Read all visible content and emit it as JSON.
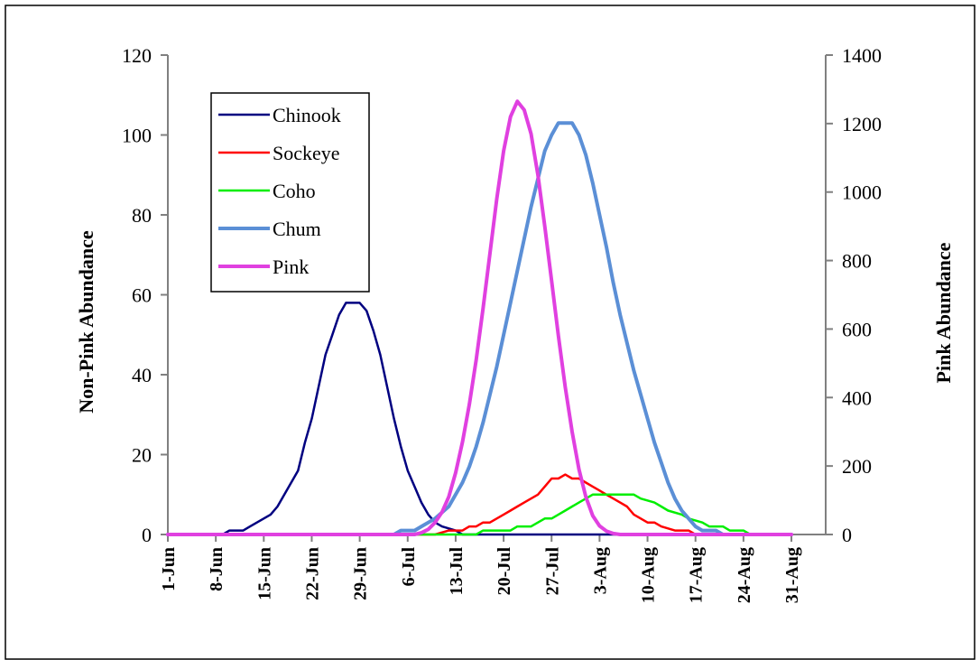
{
  "chart_data": {
    "type": "line",
    "title": "",
    "ylabel": "Non-Pink Abundance",
    "y2label": "Pink Abundance",
    "ylim": [
      0,
      120
    ],
    "y2lim": [
      0,
      1400
    ],
    "yticks": [
      "0",
      "20",
      "40",
      "60",
      "80",
      "100",
      "120"
    ],
    "y2ticks": [
      "0",
      "200",
      "400",
      "600",
      "800",
      "1000",
      "1200",
      "1400"
    ],
    "x_start": "1-Jun",
    "x_day_count": 96,
    "xtick_labels": [
      "1-Jun",
      "8-Jun",
      "15-Jun",
      "22-Jun",
      "29-Jun",
      "6-Jul",
      "13-Jul",
      "20-Jul",
      "27-Jul",
      "3-Aug",
      "10-Aug",
      "17-Aug",
      "24-Aug",
      "31-Aug"
    ],
    "legend_position": "upper-left",
    "grid": false,
    "series": [
      {
        "name": "Chinook",
        "axis": "left",
        "color": "#000080",
        "points": [
          [
            "1-Jun",
            0
          ],
          [
            "9-Jun",
            0
          ],
          [
            "10-Jun",
            1
          ],
          [
            "12-Jun",
            1
          ],
          [
            "13-Jun",
            2
          ],
          [
            "15-Jun",
            4
          ],
          [
            "16-Jun",
            5
          ],
          [
            "17-Jun",
            7
          ],
          [
            "19-Jun",
            13
          ],
          [
            "20-Jun",
            16
          ],
          [
            "21-Jun",
            23
          ],
          [
            "22-Jun",
            29
          ],
          [
            "23-Jun",
            37
          ],
          [
            "24-Jun",
            45
          ],
          [
            "25-Jun",
            50
          ],
          [
            "26-Jun",
            55
          ],
          [
            "27-Jun",
            58
          ],
          [
            "29-Jun",
            58
          ],
          [
            "30-Jun",
            56
          ],
          [
            "1-Jul",
            51
          ],
          [
            "2-Jul",
            45
          ],
          [
            "3-Jul",
            37
          ],
          [
            "4-Jul",
            29
          ],
          [
            "5-Jul",
            22
          ],
          [
            "6-Jul",
            16
          ],
          [
            "7-Jul",
            12
          ],
          [
            "8-Jul",
            8
          ],
          [
            "9-Jul",
            5
          ],
          [
            "10-Jul",
            3
          ],
          [
            "11-Jul",
            2
          ],
          [
            "13-Jul",
            1
          ],
          [
            "14-Jul",
            0
          ],
          [
            "31-Aug",
            0
          ]
        ]
      },
      {
        "name": "Sockeye",
        "axis": "left",
        "color": "#ff0000",
        "points": [
          [
            "1-Jun",
            0
          ],
          [
            "10-Jul",
            0
          ],
          [
            "12-Jul",
            1
          ],
          [
            "14-Jul",
            1
          ],
          [
            "15-Jul",
            2
          ],
          [
            "16-Jul",
            2
          ],
          [
            "17-Jul",
            3
          ],
          [
            "18-Jul",
            3
          ],
          [
            "19-Jul",
            4
          ],
          [
            "20-Jul",
            5
          ],
          [
            "21-Jul",
            6
          ],
          [
            "22-Jul",
            7
          ],
          [
            "23-Jul",
            8
          ],
          [
            "24-Jul",
            9
          ],
          [
            "25-Jul",
            10
          ],
          [
            "26-Jul",
            12
          ],
          [
            "27-Jul",
            14
          ],
          [
            "28-Jul",
            14
          ],
          [
            "29-Jul",
            15
          ],
          [
            "30-Jul",
            14
          ],
          [
            "31-Jul",
            14
          ],
          [
            "1-Aug",
            13
          ],
          [
            "2-Aug",
            12
          ],
          [
            "3-Aug",
            11
          ],
          [
            "4-Aug",
            10
          ],
          [
            "5-Aug",
            9
          ],
          [
            "6-Aug",
            8
          ],
          [
            "7-Aug",
            7
          ],
          [
            "8-Aug",
            5
          ],
          [
            "9-Aug",
            4
          ],
          [
            "10-Aug",
            3
          ],
          [
            "11-Aug",
            3
          ],
          [
            "12-Aug",
            2
          ],
          [
            "14-Aug",
            1
          ],
          [
            "16-Aug",
            1
          ],
          [
            "17-Aug",
            0
          ],
          [
            "31-Aug",
            0
          ]
        ]
      },
      {
        "name": "Coho",
        "axis": "left",
        "color": "#00ee00",
        "points": [
          [
            "1-Jun",
            0
          ],
          [
            "16-Jul",
            0
          ],
          [
            "17-Jul",
            1
          ],
          [
            "21-Jul",
            1
          ],
          [
            "22-Jul",
            2
          ],
          [
            "24-Jul",
            2
          ],
          [
            "25-Jul",
            3
          ],
          [
            "26-Jul",
            4
          ],
          [
            "27-Jul",
            4
          ],
          [
            "28-Jul",
            5
          ],
          [
            "29-Jul",
            6
          ],
          [
            "30-Jul",
            7
          ],
          [
            "31-Jul",
            8
          ],
          [
            "1-Aug",
            9
          ],
          [
            "2-Aug",
            10
          ],
          [
            "3-Aug",
            10
          ],
          [
            "5-Aug",
            10
          ],
          [
            "6-Aug",
            10
          ],
          [
            "8-Aug",
            10
          ],
          [
            "9-Aug",
            9
          ],
          [
            "11-Aug",
            8
          ],
          [
            "12-Aug",
            7
          ],
          [
            "13-Aug",
            6
          ],
          [
            "15-Aug",
            5
          ],
          [
            "16-Aug",
            4
          ],
          [
            "18-Aug",
            3
          ],
          [
            "19-Aug",
            2
          ],
          [
            "21-Aug",
            2
          ],
          [
            "22-Aug",
            1
          ],
          [
            "24-Aug",
            1
          ],
          [
            "25-Aug",
            0
          ],
          [
            "31-Aug",
            0
          ]
        ]
      },
      {
        "name": "Chum",
        "axis": "left",
        "color": "#5b8fd6",
        "points": [
          [
            "1-Jun",
            0
          ],
          [
            "4-Jul",
            0
          ],
          [
            "5-Jul",
            1
          ],
          [
            "7-Jul",
            1
          ],
          [
            "8-Jul",
            2
          ],
          [
            "10-Jul",
            4
          ],
          [
            "12-Jul",
            7
          ],
          [
            "13-Jul",
            10
          ],
          [
            "14-Jul",
            13
          ],
          [
            "15-Jul",
            17
          ],
          [
            "16-Jul",
            22
          ],
          [
            "17-Jul",
            28
          ],
          [
            "18-Jul",
            35
          ],
          [
            "19-Jul",
            42
          ],
          [
            "20-Jul",
            50
          ],
          [
            "21-Jul",
            58
          ],
          [
            "22-Jul",
            66
          ],
          [
            "23-Jul",
            74
          ],
          [
            "24-Jul",
            82
          ],
          [
            "25-Jul",
            89
          ],
          [
            "26-Jul",
            96
          ],
          [
            "27-Jul",
            100
          ],
          [
            "28-Jul",
            103
          ],
          [
            "30-Jul",
            103
          ],
          [
            "31-Jul",
            100
          ],
          [
            "1-Aug",
            95
          ],
          [
            "2-Aug",
            88
          ],
          [
            "3-Aug",
            80
          ],
          [
            "4-Aug",
            72
          ],
          [
            "5-Aug",
            63
          ],
          [
            "6-Aug",
            55
          ],
          [
            "7-Aug",
            48
          ],
          [
            "8-Aug",
            41
          ],
          [
            "9-Aug",
            35
          ],
          [
            "10-Aug",
            29
          ],
          [
            "11-Aug",
            23
          ],
          [
            "12-Aug",
            18
          ],
          [
            "13-Aug",
            13
          ],
          [
            "14-Aug",
            9
          ],
          [
            "15-Aug",
            6
          ],
          [
            "16-Aug",
            4
          ],
          [
            "17-Aug",
            2
          ],
          [
            "18-Aug",
            1
          ],
          [
            "20-Aug",
            1
          ],
          [
            "21-Aug",
            0
          ],
          [
            "31-Aug",
            0
          ]
        ]
      },
      {
        "name": "Pink",
        "axis": "right",
        "color": "#e040e0",
        "points": [
          [
            "1-Jun",
            0
          ],
          [
            "7-Jul",
            0
          ],
          [
            "8-Jul",
            5
          ],
          [
            "9-Jul",
            15
          ],
          [
            "10-Jul",
            35
          ],
          [
            "11-Jul",
            65
          ],
          [
            "12-Jul",
            110
          ],
          [
            "13-Jul",
            180
          ],
          [
            "14-Jul",
            270
          ],
          [
            "15-Jul",
            380
          ],
          [
            "16-Jul",
            510
          ],
          [
            "17-Jul",
            660
          ],
          [
            "18-Jul",
            820
          ],
          [
            "19-Jul",
            980
          ],
          [
            "20-Jul",
            1120
          ],
          [
            "21-Jul",
            1220
          ],
          [
            "22-Jul",
            1265
          ],
          [
            "23-Jul",
            1240
          ],
          [
            "24-Jul",
            1170
          ],
          [
            "25-Jul",
            1050
          ],
          [
            "26-Jul",
            900
          ],
          [
            "27-Jul",
            740
          ],
          [
            "28-Jul",
            580
          ],
          [
            "29-Jul",
            430
          ],
          [
            "30-Jul",
            300
          ],
          [
            "31-Jul",
            190
          ],
          [
            "1-Aug",
            110
          ],
          [
            "2-Aug",
            55
          ],
          [
            "3-Aug",
            25
          ],
          [
            "4-Aug",
            10
          ],
          [
            "5-Aug",
            3
          ],
          [
            "6-Aug",
            0
          ],
          [
            "31-Aug",
            0
          ]
        ]
      }
    ]
  }
}
